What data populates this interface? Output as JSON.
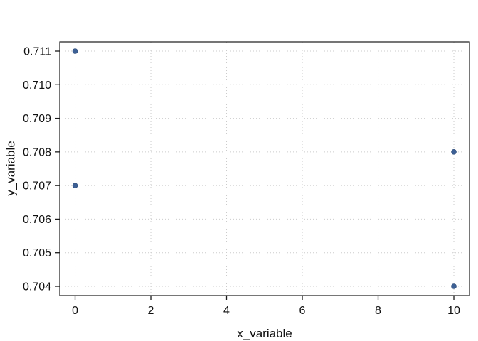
{
  "chart_data": {
    "type": "scatter",
    "title": "",
    "xlabel": "x_variable",
    "ylabel": "y_variable",
    "points": [
      {
        "x": 0,
        "y": 0.711
      },
      {
        "x": 0,
        "y": 0.707
      },
      {
        "x": 10,
        "y": 0.708
      },
      {
        "x": 10,
        "y": 0.704
      }
    ],
    "xlim": [
      -0.404,
      10.413
    ],
    "ylim": [
      0.703725,
      0.711275
    ],
    "xticks": {
      "values": [
        0,
        2,
        4,
        6,
        8,
        10
      ],
      "labels": [
        "0",
        "2",
        "4",
        "6",
        "8",
        "10"
      ]
    },
    "yticks": {
      "values": [
        0.704,
        0.705,
        0.706,
        0.707,
        0.708,
        0.709,
        0.71,
        0.711
      ],
      "labels": [
        "0.704",
        "0.705",
        "0.706",
        "0.707",
        "0.708",
        "0.709",
        "0.710",
        "0.711"
      ]
    },
    "grid": {
      "visible": true,
      "style": "dotted"
    },
    "legend": {
      "visible": false
    },
    "colors": {
      "marker_fill": "#3d6095",
      "marker_edge": "#2c4a77",
      "grid": "#cbcbcb",
      "spine": "#1a1a1a",
      "tick": "#1a1a1a",
      "text": "#111111",
      "background": "#ffffff"
    },
    "marker": {
      "shape": "circle",
      "radius": 3.5
    }
  }
}
